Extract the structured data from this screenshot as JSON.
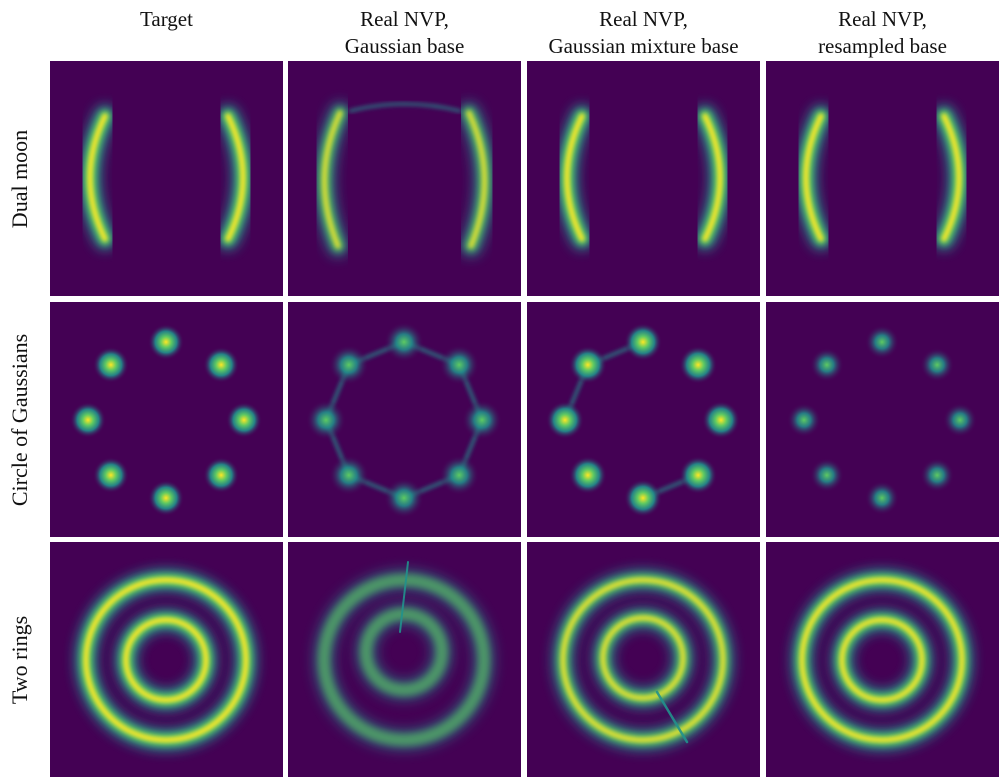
{
  "colors": {
    "background": "#440154",
    "mid": "#21918c",
    "high": "#5ec962",
    "peak": "#fde725"
  },
  "columns": [
    {
      "lines": [
        "Target"
      ]
    },
    {
      "lines": [
        "Real NVP,",
        "Gaussian base"
      ]
    },
    {
      "lines": [
        "Real NVP,",
        "Gaussian mixture base"
      ]
    },
    {
      "lines": [
        "Real NVP,",
        "resampled base"
      ]
    }
  ],
  "rows": [
    {
      "label": "Dual moon",
      "kind": "moon"
    },
    {
      "label": "Circle of Gaussians",
      "kind": "gauss"
    },
    {
      "label": "Two rings",
      "kind": "rings"
    }
  ]
}
